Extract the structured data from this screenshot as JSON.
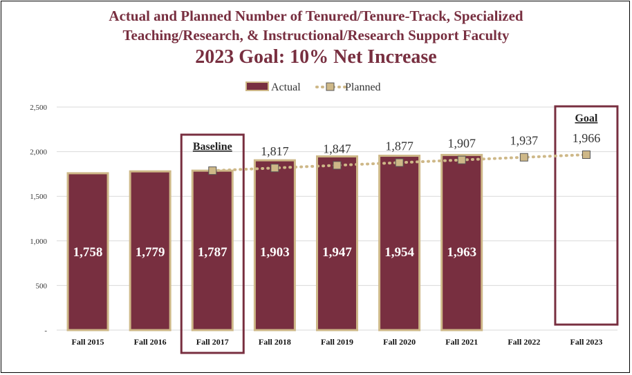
{
  "title": {
    "line1": "Actual and Planned Number of Tenured/Tenure-Track, Specialized",
    "line2": "Teaching/Research, & Instructional/Research Support Faculty",
    "line3": "2023 Goal: 10% Net Increase"
  },
  "legend": {
    "actual": "Actual",
    "planned": "Planned"
  },
  "colors": {
    "bar": "#782f40",
    "bar_border": "#ceb888",
    "marker": "#ceb888",
    "title": "#782f40",
    "dotted_line": "#ceb888"
  },
  "chart_data": {
    "type": "bar",
    "categories": [
      "Fall 2015",
      "Fall 2016",
      "Fall 2017",
      "Fall 2018",
      "Fall 2019",
      "Fall 2020",
      "Fall 2021",
      "Fall 2022",
      "Fall 2023"
    ],
    "series": [
      {
        "name": "Actual",
        "type": "bar",
        "values": [
          1758,
          1779,
          1787,
          1903,
          1947,
          1954,
          1963,
          null,
          null
        ]
      },
      {
        "name": "Planned",
        "type": "line-dotted-markers",
        "values": [
          null,
          null,
          1787,
          1817,
          1847,
          1877,
          1907,
          1937,
          1966
        ]
      }
    ],
    "actual_labels": [
      "1,758",
      "1,779",
      "1,787",
      "1,903",
      "1,947",
      "1,954",
      "1,963"
    ],
    "planned_labels": [
      "1,817",
      "1,847",
      "1,877",
      "1,907",
      "1,937",
      "1,966"
    ],
    "ytick_labels": [
      "-",
      "500",
      "1,000",
      "1,500",
      "2,000",
      "2,500"
    ],
    "ylim": [
      0,
      2500
    ],
    "grid": true,
    "legend_position": "top",
    "annotations": [
      {
        "text": "Baseline",
        "category": "Fall 2017"
      },
      {
        "text": "Goal",
        "category": "Fall 2023"
      }
    ]
  }
}
